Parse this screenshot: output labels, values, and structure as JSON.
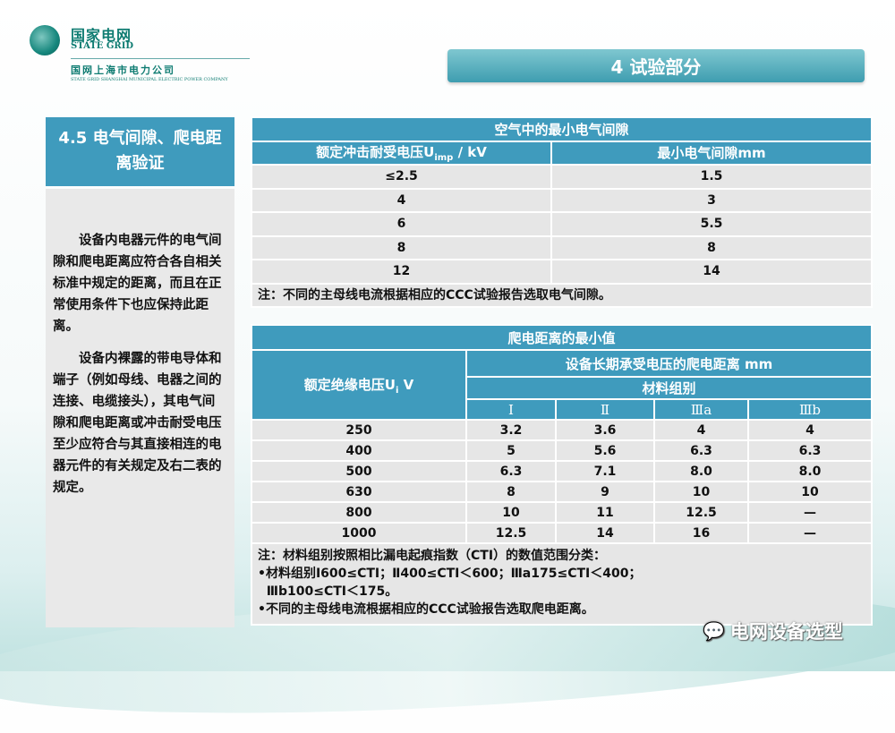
{
  "logo": {
    "cn": "国家电网",
    "en": "STATE GRID",
    "sub": "国网上海市电力公司",
    "sub_en": "STATE GRID SHANGHAI MUNICIPAL ELECTRIC POWER COMPANY"
  },
  "banner": "4 试验部分",
  "left": {
    "title": "4.5 电气间隙、爬电距离验证",
    "paragraphs": [
      "设备内电器元件的电气间隙和爬电距离应符合各自相关标准中规定的距离，而且在正常使用条件下也应保持此距离。",
      "设备内裸露的带电导体和端子（例如母线、电器之间的连接、电缆接头），其电气间隙和爬电距离或冲击耐受电压至少应符合与其直接相连的电器元件的有关规定及右二表的规定。"
    ]
  },
  "table1": {
    "title": "空气中的最小电气间隙",
    "col1": "额定冲击耐受电压U",
    "col1_sub": "imp",
    "col1_unit": " / kV",
    "col2": "最小电气间隙mm",
    "rows": [
      [
        "≤2.5",
        "1.5"
      ],
      [
        "4",
        "3"
      ],
      [
        "6",
        "5.5"
      ],
      [
        "8",
        "8"
      ],
      [
        "12",
        "14"
      ]
    ],
    "note": "注：不同的主母线电流根据相应的CCC试验报告选取电气间隙。"
  },
  "table2": {
    "title": "爬电距离的最小值",
    "col1": "额定绝缘电压U",
    "col1_sub": "i",
    "col1_unit": " V",
    "group_header": "设备长期承受电压的爬电距离  mm",
    "sub_header": "材料组别",
    "groups": [
      "Ⅰ",
      "Ⅱ",
      "Ⅲa",
      "Ⅲb"
    ],
    "rows": [
      [
        "250",
        "3.2",
        "3.6",
        "4",
        "4"
      ],
      [
        "400",
        "5",
        "5.6",
        "6.3",
        "6.3"
      ],
      [
        "500",
        "6.3",
        "7.1",
        "8.0",
        "8.0"
      ],
      [
        "630",
        "8",
        "9",
        "10",
        "10"
      ],
      [
        "800",
        "10",
        "11",
        "12.5",
        "—"
      ],
      [
        "1000",
        "12.5",
        "14",
        "16",
        "—"
      ]
    ],
    "notes": [
      "注：材料组别按照相比漏电起痕指数（CTI）的数值范围分类：",
      "•材料组别Ⅰ600≤CTI；Ⅱ400≤CTI＜600；Ⅲa175≤CTI＜400；",
      "  Ⅲb100≤CTI＜175。",
      "•不同的主母线电流根据相应的CCC试验报告选取爬电距离。"
    ]
  },
  "watermark": "电网设备选型"
}
